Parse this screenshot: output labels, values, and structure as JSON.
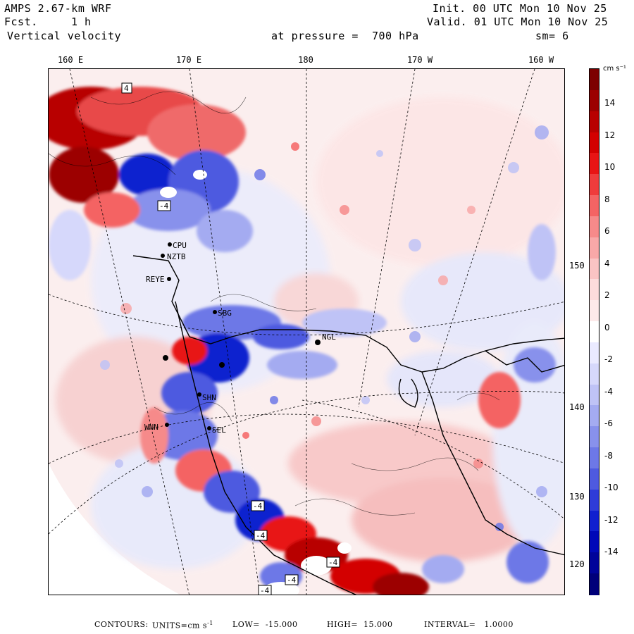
{
  "header": {
    "model": "AMPS 2.67-km WRF",
    "fcst_label": "Fcst.",
    "fcst_value": "1 h",
    "field": "Vertical velocity",
    "init": "Init. 00 UTC Mon 10 Nov 25",
    "valid": "Valid. 01 UTC Mon 10 Nov 25",
    "pressure": "at pressure =  700 hPa",
    "smoothing": "sm= 6"
  },
  "lon_labels": [
    "160 E",
    "170 E",
    "180",
    "170 W",
    "160 W"
  ],
  "lat_labels": [
    "150 W",
    "140 W",
    "130 W",
    "120 W"
  ],
  "stations": [
    "CPU",
    "NZTB",
    "REYE",
    "SBG",
    "NGL",
    "SHN",
    "WNN",
    "SEL"
  ],
  "contour_labels": [
    "4",
    "-4",
    "-4",
    "-4",
    "-4",
    "-4",
    "-4"
  ],
  "colorbar": {
    "unit": "cm s⁻¹",
    "ticks": [
      "14",
      "12",
      "10",
      "8",
      "6",
      "4",
      "2",
      "0",
      "-2",
      "-4",
      "-6",
      "-8",
      "-10",
      "-12",
      "-14"
    ],
    "colors": [
      "#7d0000",
      "#9c0000",
      "#b80000",
      "#d30000",
      "#e81414",
      "#ef3c3c",
      "#f46464",
      "#f68a8a",
      "#f8a8a8",
      "#fac4c4",
      "#fcdcdc",
      "#fdeaea",
      "#ffffff",
      "#eaeaff",
      "#d6d8fb",
      "#bfc3f6",
      "#a4abf1",
      "#8891ec",
      "#6d78e7",
      "#4e5ae0",
      "#2e3cd8",
      "#1020cf",
      "#0008b8",
      "#00039a",
      "#00007a"
    ]
  },
  "footer": {
    "contours": "CONTOURS:",
    "units_label": "UNITS=cm s",
    "units_sup": "-1",
    "low": "LOW=  -15.000",
    "high": "HIGH=  15.000",
    "interval": "INTERVAL=   1.0000"
  }
}
